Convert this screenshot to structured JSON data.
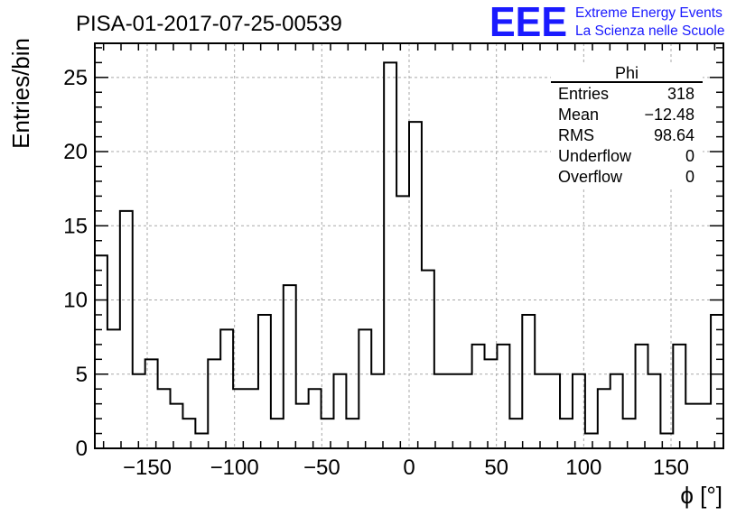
{
  "chart_data": {
    "type": "bar",
    "style": "step-histogram",
    "title": "PISA-01-2017-07-25-00539",
    "xlabel": "ϕ [°]",
    "ylabel": "Entries/bin",
    "xlim": [
      -180,
      180
    ],
    "ylim": [
      0,
      27.3
    ],
    "x_ticks": [
      -150,
      -100,
      -50,
      0,
      50,
      100,
      150
    ],
    "y_ticks": [
      0,
      5,
      10,
      15,
      20,
      25
    ],
    "grid": true,
    "bin_edges": [
      -180,
      -172.8,
      -165.6,
      -158.4,
      -151.2,
      -144,
      -136.8,
      -129.6,
      -122.4,
      -115.2,
      -108,
      -100.8,
      -93.6,
      -86.4,
      -79.2,
      -72,
      -64.8,
      -57.6,
      -50.4,
      -43.2,
      -36,
      -28.8,
      -21.6,
      -14.4,
      -7.2,
      0,
      7.2,
      14.4,
      21.6,
      28.8,
      36,
      43.2,
      50.4,
      57.6,
      64.8,
      72,
      79.2,
      86.4,
      93.6,
      100.8,
      108,
      115.2,
      122.4,
      129.6,
      136.8,
      144,
      151.2,
      158.4,
      165.6,
      172.8,
      180
    ],
    "values": [
      13,
      8,
      16,
      5,
      6,
      4,
      3,
      2,
      1,
      6,
      8,
      4,
      4,
      9,
      2,
      11,
      3,
      4,
      2,
      5,
      2,
      8,
      5,
      26,
      17,
      22,
      12,
      5,
      5,
      5,
      7,
      6,
      7,
      2,
      9,
      5,
      5,
      2,
      5,
      1,
      4,
      5,
      2,
      7,
      5,
      1,
      7,
      3,
      3,
      9
    ],
    "line_color": "#000000",
    "stats_box": {
      "header": "Phi",
      "rows": [
        {
          "label": "Entries",
          "value": "318"
        },
        {
          "label": "Mean",
          "value": "−12.48"
        },
        {
          "label": "RMS",
          "value": "98.64"
        },
        {
          "label": "Underflow",
          "value": "0"
        },
        {
          "label": "Overflow",
          "value": "0"
        }
      ],
      "placement": "top-right"
    }
  },
  "logo": {
    "text": "EEE",
    "line1": "Extreme Energy Events",
    "line2": "La Scienza nelle Scuole",
    "color": "#1a1aff"
  }
}
